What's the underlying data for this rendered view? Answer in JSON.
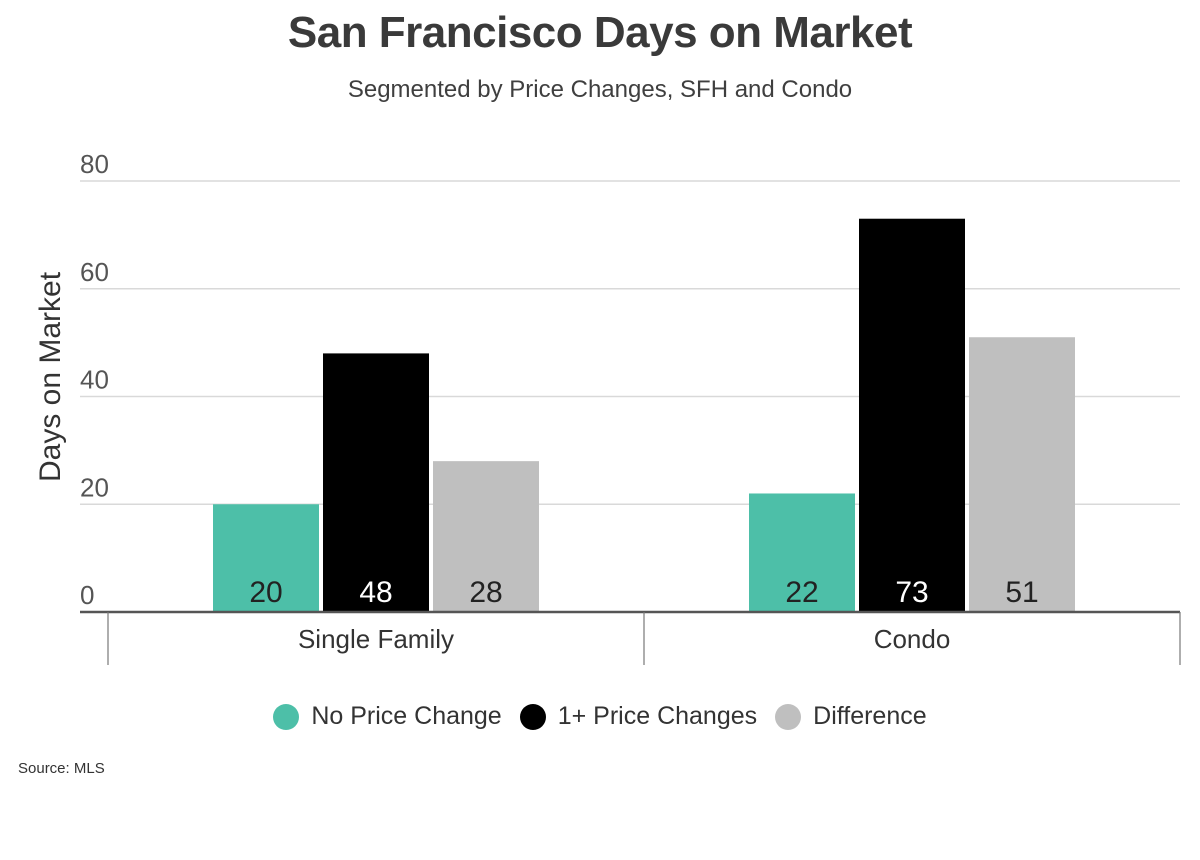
{
  "title": "San Francisco Days on Market",
  "subtitle": "Segmented by Price Changes, SFH and Condo",
  "source": "Source:  MLS",
  "chart_data": {
    "type": "bar",
    "categories": [
      "Single Family",
      "Condo"
    ],
    "series": [
      {
        "name": "No Price Change",
        "values": [
          20,
          22
        ],
        "color": "#4dbfa8",
        "label_color": "#222222"
      },
      {
        "name": "1+ Price Changes",
        "values": [
          48,
          73
        ],
        "color": "#000000",
        "label_color": "#ffffff"
      },
      {
        "name": "Difference",
        "values": [
          28,
          51
        ],
        "color": "#bfbfbf",
        "label_color": "#222222"
      }
    ],
    "ylabel": "Days on Market",
    "xlabel": "",
    "ylim": [
      0,
      80
    ],
    "yticks": [
      0,
      20,
      40,
      60,
      80
    ],
    "grid": true,
    "legend_position": "bottom-center"
  }
}
